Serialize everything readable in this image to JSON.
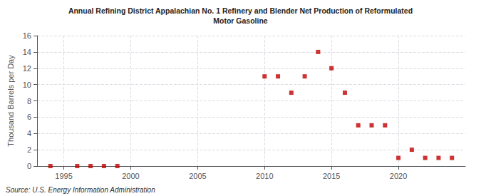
{
  "chart_data": {
    "type": "scatter",
    "title": "Annual Refining District Appalachian No. 1 Refinery and Blender Net Production of Reformulated",
    "subtitle": "Motor Gasoline",
    "ylabel": "Thousand Barrels per Day",
    "annotations": [
      "Source: U.S. Energy Information Administration"
    ],
    "x": [
      1994,
      1996,
      1997,
      1998,
      1999,
      2010,
      2011,
      2012,
      2013,
      2014,
      2015,
      2016,
      2017,
      2018,
      2019,
      2020,
      2021,
      2022,
      2023,
      2024
    ],
    "values": [
      0,
      0,
      0,
      0,
      0,
      11,
      11,
      9,
      11,
      14,
      12,
      9,
      5,
      5,
      5,
      1,
      2,
      1,
      1,
      1
    ],
    "color": "#c00000",
    "marker": "square",
    "xlim": [
      1993,
      2025
    ],
    "xticks": [
      1995,
      2000,
      2005,
      2010,
      2015,
      2020
    ],
    "ylim": [
      0,
      16
    ],
    "yticks": [
      0,
      2,
      4,
      6,
      8,
      10,
      12,
      14,
      16
    ],
    "grid": true
  }
}
